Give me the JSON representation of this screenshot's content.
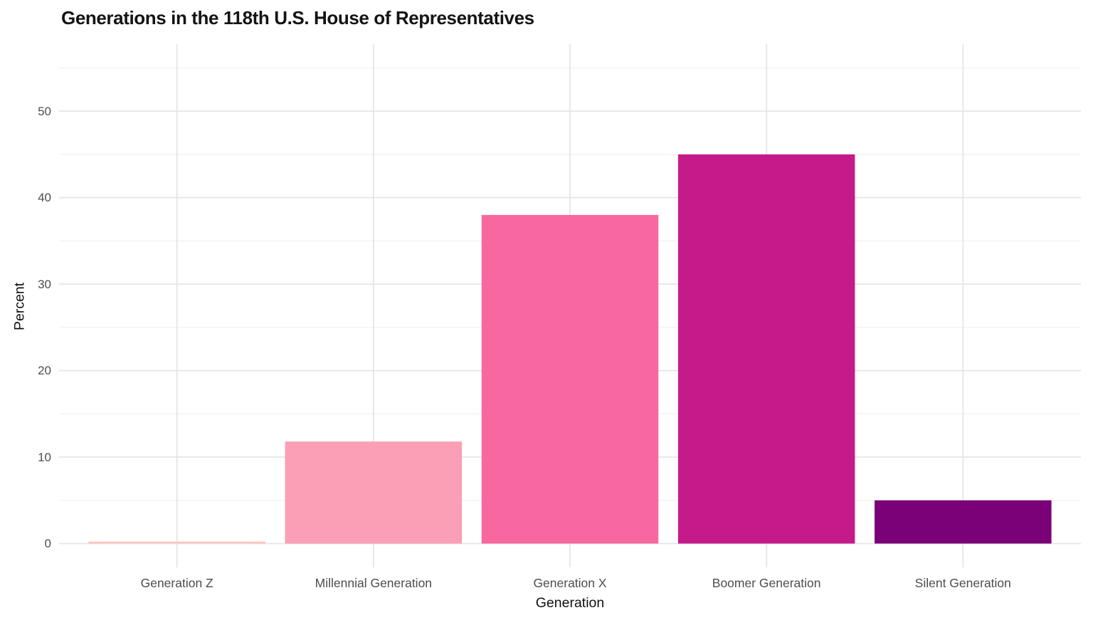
{
  "chart_data": {
    "type": "bar",
    "title": "Generations in the 118th U.S. House of Representatives",
    "xlabel": "Generation",
    "ylabel": "Percent",
    "categories": [
      "Generation Z",
      "Millennial Generation",
      "Generation X",
      "Boomer Generation",
      "Silent Generation"
    ],
    "values": [
      0.23,
      11.8,
      38,
      45,
      5
    ],
    "bar_colors": [
      "#fcc5c0",
      "#fa9fb5",
      "#f768a1",
      "#c51b8a",
      "#7a0177"
    ],
    "ylim": [
      0,
      55
    ],
    "y_major_ticks": [
      0,
      10,
      20,
      30,
      40,
      50
    ],
    "y_minor_ticks": [
      5,
      15,
      25,
      35,
      45,
      55
    ],
    "grid": "horizontal major+minor, vertical major at category centers, no legend",
    "legend_position": "none",
    "bar_width_fraction": 0.9
  },
  "colors": {
    "background": "#ffffff",
    "grid_major": "#e5e5e5",
    "grid_minor": "#f1f1f1",
    "tick_label": "#4d4d4d",
    "axis_title": "#111111",
    "title": "#141414"
  }
}
